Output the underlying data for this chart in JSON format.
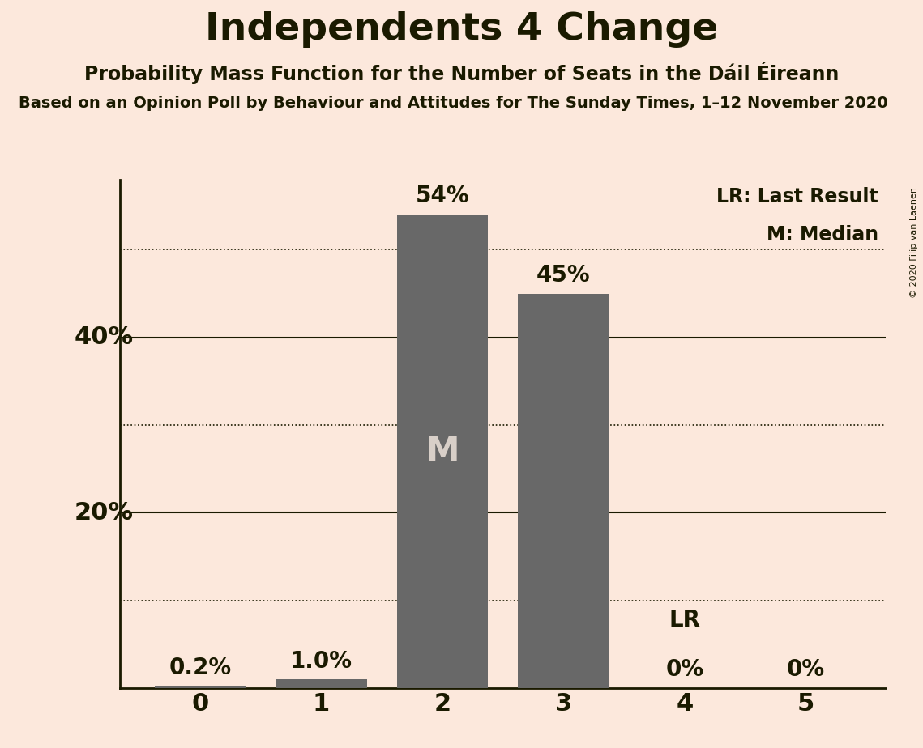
{
  "title": "Independents 4 Change",
  "subtitle1": "Probability Mass Function for the Number of Seats in the Dáil Éireann",
  "subtitle2": "Based on an Opinion Poll by Behaviour and Attitudes for The Sunday Times, 1–12 November 2020",
  "copyright": "© 2020 Filip van Laenen",
  "categories": [
    0,
    1,
    2,
    3,
    4,
    5
  ],
  "values": [
    0.2,
    1.0,
    54.0,
    45.0,
    0.0,
    0.0
  ],
  "bar_color": "#686868",
  "bar_labels": [
    "0.2%",
    "1.0%",
    "54%",
    "45%",
    "0%",
    "0%"
  ],
  "median_bar": 2,
  "median_label": "M",
  "lr_bar": 4,
  "lr_label": "LR",
  "background_color": "#fce8dc",
  "text_color": "#1a1a00",
  "ylim": [
    0,
    58
  ],
  "solid_yticks": [
    20,
    40
  ],
  "dotted_yticks": [
    10,
    30,
    50
  ],
  "labeled_yticks": [
    20,
    40
  ],
  "legend_lr": "LR: Last Result",
  "legend_m": "M: Median",
  "title_fontsize": 34,
  "subtitle1_fontsize": 17,
  "subtitle2_fontsize": 14,
  "bar_label_fontsize": 20,
  "axis_tick_fontsize": 22,
  "legend_fontsize": 17,
  "median_label_fontsize": 30,
  "lr_label_fontsize": 20
}
